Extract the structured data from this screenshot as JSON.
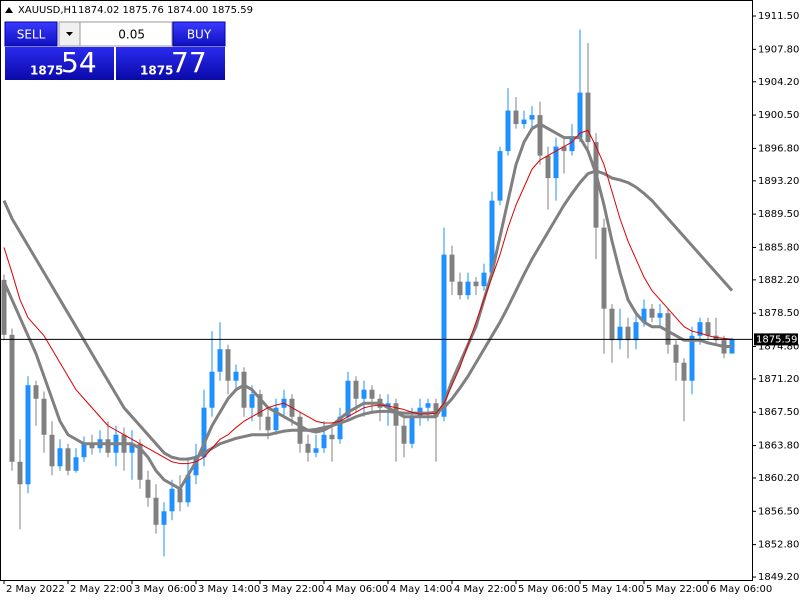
{
  "chart_data": {
    "type": "candlestick",
    "title": "XAUUSD,H1",
    "subtitle": "1874.02 1875.76 1874.00 1875.59",
    "categories": [
      "2 May 2022",
      null,
      null,
      null,
      null,
      null,
      null,
      null,
      "2 May 22:00",
      null,
      null,
      null,
      null,
      null,
      null,
      null,
      "3 May 06:00",
      null,
      null,
      null,
      null,
      null,
      null,
      null,
      "3 May 14:00",
      null,
      null,
      null,
      null,
      null,
      null,
      null,
      "3 May 22:00",
      null,
      null,
      null,
      null,
      null,
      null,
      null,
      "4 May 06:00",
      null,
      null,
      null,
      null,
      null,
      null,
      null,
      "4 May 14:00",
      null,
      null,
      null,
      null,
      null,
      null,
      null,
      "4 May 22:00",
      null,
      null,
      null,
      null,
      null,
      null,
      null,
      "5 May 06:00",
      null,
      null,
      null,
      null,
      null,
      null,
      null,
      "5 May 14:00",
      null,
      null,
      null,
      null,
      null,
      null,
      null,
      "5 May 22:00",
      null,
      null,
      null,
      null,
      null,
      null,
      null,
      "6 May 06:00",
      null,
      null,
      null
    ],
    "ohlc": {
      "open": [
        1882.2,
        1876.1,
        1862.0,
        1859.5,
        1870.5,
        1869.0,
        1865.0,
        1861.5,
        1863.5,
        1861.0,
        1862.5,
        1864.0,
        1863.5,
        1864.5,
        1863.0,
        1865.0,
        1863.0,
        1864.0,
        1860.0,
        1858.0,
        1855.0,
        1856.5,
        1859.0,
        1857.5,
        1860.5,
        1862.5,
        1868.0,
        1872.0,
        1874.5,
        1871.0,
        1872.0,
        1868.0,
        1869.5,
        1867.0,
        1865.5,
        1868.0,
        1869.0,
        1867.0,
        1864.0,
        1863.0,
        1863.5,
        1865.0,
        1864.5,
        1867.0,
        1871.0,
        1869.0,
        1870.0,
        1869.0,
        1868.0,
        1868.5,
        1866.0,
        1864.0,
        1867.0,
        1868.0,
        1868.5,
        1867.0,
        1885.0,
        1882.0,
        1880.5,
        1882.0,
        1881.5,
        1883.0,
        1891.0,
        1896.5,
        1901.0,
        1899.5,
        1900.0,
        1900.5,
        1896.0,
        1893.5,
        1897.0,
        1896.5,
        1898.0,
        1903.0,
        1897.5,
        1888.0,
        1879.0,
        1875.5,
        1877.0,
        1875.5,
        1877.5,
        1879.0,
        1878.0,
        1878.5,
        1875.0,
        1873.0,
        1871.0,
        1876.0,
        1877.5,
        1876.0,
        1875.5,
        1874.02
      ],
      "high": [
        1882.8,
        1876.8,
        1864.5,
        1871.5,
        1871.0,
        1869.8,
        1866.5,
        1864.5,
        1864.0,
        1863.5,
        1864.8,
        1865.0,
        1865.5,
        1866.5,
        1866.0,
        1865.8,
        1865.5,
        1864.5,
        1861.0,
        1859.5,
        1857.5,
        1860.0,
        1860.5,
        1862.5,
        1864.0,
        1870.0,
        1876.5,
        1877.5,
        1875.0,
        1872.8,
        1872.5,
        1870.5,
        1870.0,
        1868.0,
        1869.0,
        1870.0,
        1869.5,
        1867.5,
        1865.0,
        1865.0,
        1866.5,
        1866.0,
        1868.0,
        1872.0,
        1871.5,
        1871.0,
        1870.5,
        1869.5,
        1869.5,
        1869.0,
        1867.0,
        1868.0,
        1869.0,
        1869.0,
        1869.0,
        1888.0,
        1886.0,
        1883.0,
        1883.0,
        1882.5,
        1884.0,
        1892.0,
        1897.0,
        1903.5,
        1902.5,
        1901.0,
        1901.5,
        1902.0,
        1897.0,
        1898.0,
        1898.0,
        1899.5,
        1910.0,
        1908.5,
        1898.5,
        1889.0,
        1879.5,
        1879.0,
        1878.0,
        1878.5,
        1880.0,
        1879.5,
        1879.5,
        1879.0,
        1875.5,
        1873.5,
        1877.0,
        1878.0,
        1878.0,
        1878.0,
        1876.0,
        1875.76
      ],
      "low": [
        1875.5,
        1861.0,
        1854.5,
        1858.5,
        1866.0,
        1863.0,
        1860.5,
        1861.0,
        1860.5,
        1860.8,
        1862.0,
        1862.8,
        1863.0,
        1862.5,
        1861.5,
        1861.0,
        1860.0,
        1859.0,
        1857.0,
        1854.0,
        1851.5,
        1855.5,
        1856.5,
        1857.0,
        1859.5,
        1861.5,
        1867.0,
        1871.0,
        1869.5,
        1870.0,
        1867.0,
        1866.5,
        1865.5,
        1864.5,
        1865.0,
        1867.0,
        1866.0,
        1863.0,
        1862.0,
        1862.5,
        1863.0,
        1862.0,
        1864.0,
        1866.5,
        1867.5,
        1867.0,
        1867.5,
        1866.5,
        1866.0,
        1862.0,
        1862.5,
        1863.5,
        1866.0,
        1866.5,
        1862.0,
        1866.5,
        1880.5,
        1880.0,
        1880.0,
        1880.5,
        1881.0,
        1882.5,
        1890.5,
        1896.0,
        1899.0,
        1899.0,
        1899.0,
        1895.0,
        1890.0,
        1891.0,
        1894.0,
        1896.0,
        1897.5,
        1896.5,
        1884.5,
        1874.0,
        1873.0,
        1874.5,
        1873.5,
        1874.5,
        1877.0,
        1877.5,
        1877.0,
        1874.0,
        1871.0,
        1866.5,
        1869.5,
        1875.0,
        1875.5,
        1875.0,
        1873.5,
        1874.0
      ],
      "close": [
        1876.1,
        1862.0,
        1859.5,
        1870.5,
        1869.0,
        1865.0,
        1861.5,
        1863.5,
        1861.0,
        1862.5,
        1864.0,
        1863.5,
        1864.5,
        1863.0,
        1865.0,
        1863.0,
        1864.0,
        1860.0,
        1858.0,
        1855.0,
        1856.5,
        1859.0,
        1857.5,
        1860.5,
        1862.5,
        1868.0,
        1872.0,
        1874.5,
        1871.0,
        1872.0,
        1868.0,
        1869.5,
        1867.0,
        1865.5,
        1868.0,
        1869.0,
        1867.0,
        1864.0,
        1863.0,
        1863.5,
        1865.0,
        1864.5,
        1867.0,
        1871.0,
        1869.0,
        1870.0,
        1869.0,
        1868.0,
        1868.5,
        1866.0,
        1864.0,
        1867.0,
        1868.0,
        1868.5,
        1867.0,
        1885.0,
        1882.0,
        1880.5,
        1882.0,
        1881.5,
        1883.0,
        1891.0,
        1896.5,
        1901.0,
        1899.5,
        1900.0,
        1900.5,
        1896.0,
        1893.5,
        1897.0,
        1896.5,
        1898.0,
        1903.0,
        1897.5,
        1888.0,
        1879.0,
        1875.5,
        1877.0,
        1875.5,
        1877.5,
        1879.0,
        1878.0,
        1878.5,
        1875.0,
        1873.0,
        1871.0,
        1876.0,
        1877.5,
        1876.0,
        1875.5,
        1874.02,
        1875.59
      ]
    },
    "up_color": "#1e90ff",
    "down_color": "#808080",
    "overlays": [
      {
        "color": "#808080",
        "values": [
          1891,
          1889,
          1887.5,
          1886,
          1884.5,
          1883,
          1881.5,
          1880,
          1878.5,
          1877,
          1875.5,
          1874,
          1872.5,
          1871,
          1869.5,
          1868,
          1867,
          1866,
          1865,
          1864,
          1863,
          1862.5,
          1862.3,
          1862.3,
          1862.5,
          1863,
          1863.5,
          1864,
          1864.3,
          1864.6,
          1864.8,
          1865,
          1865,
          1865,
          1865.2,
          1865.4,
          1865.5,
          1865.5,
          1865.5,
          1865.6,
          1865.8,
          1866,
          1866.3,
          1866.6,
          1867,
          1867.3,
          1867.5,
          1867.6,
          1867.6,
          1867.5,
          1867.4,
          1867.4,
          1867.4,
          1867.4,
          1867.5,
          1868,
          1869,
          1870.2,
          1871.5,
          1873,
          1874.5,
          1876,
          1877.5,
          1879.2,
          1881,
          1882.8,
          1884.5,
          1886,
          1887.5,
          1889,
          1890.5,
          1891.8,
          1893,
          1894,
          1894.3,
          1894,
          1893.5,
          1893.3,
          1893,
          1892.5,
          1891.8,
          1891,
          1890,
          1889,
          1888,
          1887,
          1886,
          1885,
          1884,
          1883,
          1882,
          1881
        ]
      },
      {
        "color": "#808080",
        "values": [
          1882,
          1880,
          1878,
          1876,
          1874,
          1871.5,
          1869,
          1866.5,
          1865,
          1864.5,
          1864,
          1864,
          1864,
          1864,
          1864,
          1864,
          1864,
          1863.5,
          1862.5,
          1861,
          1860,
          1859.5,
          1859,
          1860.5,
          1862,
          1864,
          1866,
          1867.5,
          1869,
          1870,
          1870.5,
          1870,
          1869,
          1868,
          1867.5,
          1867,
          1866.5,
          1866,
          1865.5,
          1865.3,
          1865.5,
          1866,
          1866.8,
          1867.5,
          1868,
          1868.5,
          1868.5,
          1868.5,
          1868,
          1867.5,
          1867,
          1867,
          1867,
          1867,
          1867,
          1868.5,
          1871,
          1873,
          1875,
          1877,
          1880,
          1883,
          1887,
          1891,
          1895,
          1897.5,
          1899,
          1899.5,
          1899,
          1898.5,
          1898,
          1898,
          1898,
          1896.5,
          1894,
          1890.5,
          1886.5,
          1883,
          1880,
          1878.5,
          1877.5,
          1877,
          1877,
          1876.5,
          1876,
          1875.5,
          1875.5,
          1875.5,
          1875.2,
          1875,
          1874.8,
          1874.8
        ]
      },
      {
        "color": "#dd0000",
        "values": [
          1885.8,
          1883,
          1880,
          1878,
          1877,
          1876,
          1874.5,
          1873,
          1871.5,
          1870,
          1869,
          1868,
          1867,
          1866,
          1865.5,
          1865,
          1864.5,
          1864,
          1863.5,
          1863,
          1862.5,
          1862,
          1861.8,
          1861.8,
          1862,
          1862.5,
          1863.5,
          1864.5,
          1865,
          1865.8,
          1866.5,
          1867,
          1867.5,
          1868,
          1868.3,
          1868.5,
          1868,
          1867.5,
          1867,
          1866.5,
          1866.3,
          1866.3,
          1866.5,
          1867,
          1867.5,
          1868,
          1868.2,
          1868.3,
          1868.2,
          1868,
          1867.8,
          1867.5,
          1867.3,
          1867.3,
          1867.4,
          1868.5,
          1870.5,
          1872.5,
          1875,
          1877.5,
          1880,
          1882.5,
          1885,
          1888,
          1890.5,
          1892.5,
          1894.5,
          1895.5,
          1896,
          1896.5,
          1897,
          1897.5,
          1898.5,
          1898.8,
          1897,
          1895,
          1892,
          1889,
          1886.5,
          1884.5,
          1882.5,
          1881,
          1880,
          1879,
          1878,
          1877,
          1876.5,
          1876.3,
          1876,
          1875.8,
          1875.7,
          1875.6
        ]
      }
    ],
    "current_price": {
      "value": 1875.59,
      "label": "1875.59"
    },
    "ylim": [
      1848.87,
      1913.28
    ],
    "yticks": [
      {
        "value": 1911.5,
        "label": "1911.50"
      },
      {
        "value": 1907.8,
        "label": "1907.80"
      },
      {
        "value": 1904.2,
        "label": "1904.20"
      },
      {
        "value": 1900.5,
        "label": "1900.50"
      },
      {
        "value": 1896.8,
        "label": "1896.80"
      },
      {
        "value": 1893.2,
        "label": "1893.20"
      },
      {
        "value": 1889.5,
        "label": "1889.50"
      },
      {
        "value": 1885.8,
        "label": "1885.80"
      },
      {
        "value": 1882.2,
        "label": "1882.20"
      },
      {
        "value": 1878.5,
        "label": "1878.50"
      },
      {
        "value": 1874.8,
        "label": "1874.80"
      },
      {
        "value": 1871.2,
        "label": "1871.20"
      },
      {
        "value": 1867.5,
        "label": "1867.50"
      },
      {
        "value": 1863.8,
        "label": "1863.80"
      },
      {
        "value": 1860.2,
        "label": "1860.20"
      },
      {
        "value": 1856.5,
        "label": "1856.50"
      },
      {
        "value": 1852.8,
        "label": "1852.80"
      },
      {
        "value": 1849.2,
        "label": "1849.20"
      }
    ],
    "grid": false
  },
  "trade_panel": {
    "sell": "SELL",
    "buy": "BUY",
    "volume": "0.05",
    "bid_big": "1875",
    "bid_small": "54",
    "ask_big": "1875",
    "ask_small": "77"
  }
}
